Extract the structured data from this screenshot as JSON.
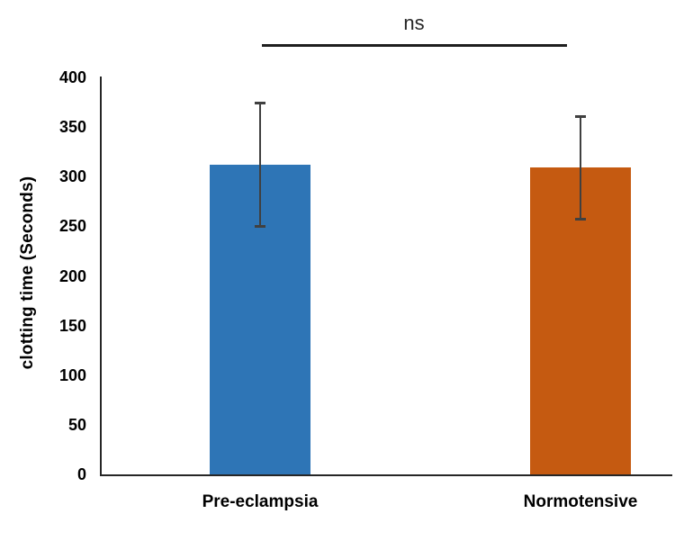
{
  "chart_data": {
    "type": "bar",
    "title": "",
    "xlabel": "",
    "ylabel": "clotting time (Seconds)",
    "categories": [
      "Pre-eclampsia",
      "Normotensive"
    ],
    "values": [
      312,
      309
    ],
    "error_bars": [
      {
        "upper": 375,
        "lower": 250
      },
      {
        "upper": 361,
        "lower": 258
      }
    ],
    "bar_colors": [
      "#2E75B6",
      "#C55A11"
    ],
    "ylim": [
      0,
      400
    ],
    "yticks": [
      0,
      50,
      100,
      150,
      200,
      250,
      300,
      350,
      400
    ],
    "grid": false,
    "legend": "none",
    "annotation": {
      "label": "ns",
      "between": [
        "Pre-eclampsia",
        "Normotensive"
      ]
    },
    "colors": {
      "axis": "#262626",
      "error_bar": "#404040",
      "significance_line": "#1f1f1f",
      "text": "#000000",
      "background": "#ffffff"
    }
  }
}
